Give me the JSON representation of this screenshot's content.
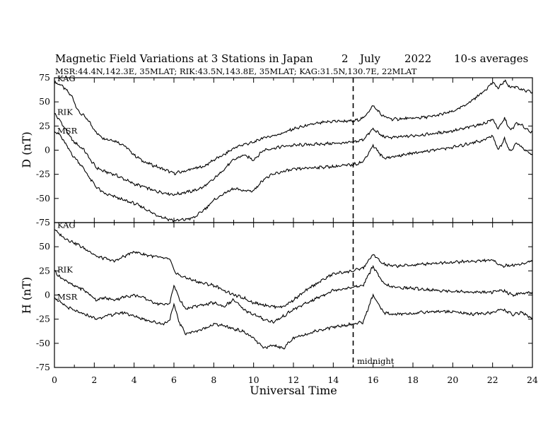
{
  "chart_data": {
    "type": "line",
    "title": "Magnetic Field Variations at 3 Stations in Japan",
    "date": {
      "day": "2",
      "month": "July",
      "year": "2022"
    },
    "averaging": "10-s averages",
    "subtitle": "MSR:44.4N,142.3E, 35MLAT;  RIK:43.5N,143.8E, 35MLAT;  KAG:31.5N,130.7E, 22MLAT",
    "xlabel": "Universal Time",
    "xlim": [
      0,
      24
    ],
    "xticks": [
      "0",
      "2",
      "4",
      "6",
      "8",
      "10",
      "12",
      "14",
      "16",
      "18",
      "20",
      "22",
      "24"
    ],
    "annotation": {
      "x": 15,
      "label": "midnight",
      "style": "dashed"
    },
    "panels": [
      {
        "ylabel": "D (nT)",
        "ylim": [
          -75,
          75
        ],
        "yticks": [
          "75",
          "50",
          "25",
          "0",
          "-25",
          "-50",
          "-75"
        ],
        "series": [
          {
            "name": "KAG",
            "x": [
              0,
              0.3,
              0.6,
              0.9,
              1.2,
              1.5,
              1.8,
              2.1,
              2.5,
              3,
              3.5,
              4,
              4.5,
              5,
              5.5,
              6,
              6.5,
              7,
              7.5,
              8,
              8.5,
              9,
              9.5,
              10,
              10.5,
              11,
              11.5,
              12,
              13,
              14,
              15,
              15.5,
              16,
              16.5,
              17,
              18,
              19,
              20,
              20.5,
              21,
              21.5,
              22,
              22.3,
              22.6,
              22.9,
              23.2,
              23.5,
              24
            ],
            "y": [
              70,
              68,
              62,
              55,
              40,
              35,
              28,
              18,
              12,
              10,
              5,
              -5,
              -12,
              -16,
              -20,
              -24,
              -22,
              -19,
              -17,
              -10,
              -5,
              2,
              6,
              8,
              13,
              15,
              18,
              22,
              27,
              30,
              30,
              33,
              46,
              35,
              32,
              33,
              35,
              40,
              45,
              52,
              60,
              70,
              64,
              72,
              65,
              66,
              62,
              60
            ]
          },
          {
            "name": "RIK",
            "x": [
              0,
              0.3,
              0.6,
              0.9,
              1.2,
              1.5,
              1.8,
              2.1,
              2.5,
              3,
              3.5,
              4,
              4.5,
              5,
              5.5,
              6,
              6.5,
              7,
              7.5,
              8,
              8.5,
              9,
              9.5,
              10,
              10.5,
              11,
              11.5,
              12,
              13,
              14,
              15,
              15.5,
              16,
              16.5,
              17,
              18,
              19,
              20,
              20.5,
              21,
              21.5,
              22,
              22.3,
              22.6,
              22.9,
              23.2,
              23.5,
              24
            ],
            "y": [
              38,
              30,
              20,
              10,
              5,
              0,
              -10,
              -18,
              -22,
              -25,
              -30,
              -35,
              -38,
              -42,
              -44,
              -46,
              -44,
              -42,
              -38,
              -30,
              -20,
              -10,
              -5,
              -10,
              0,
              2,
              4,
              5,
              6,
              7,
              8,
              11,
              22,
              14,
              13,
              15,
              17,
              20,
              22,
              25,
              27,
              32,
              22,
              33,
              20,
              28,
              25,
              18
            ]
          },
          {
            "name": "MSR",
            "x": [
              0,
              0.3,
              0.6,
              0.9,
              1.2,
              1.5,
              1.8,
              2.1,
              2.5,
              3,
              3.5,
              4,
              4.5,
              5,
              5.5,
              6,
              6.5,
              7,
              7.5,
              8,
              8.5,
              9,
              9.5,
              10,
              10.5,
              11,
              11.5,
              12,
              13,
              14,
              15,
              15.5,
              16,
              16.5,
              17,
              18,
              19,
              20,
              20.5,
              21,
              21.5,
              22,
              22.3,
              22.6,
              22.9,
              23.2,
              23.5,
              24
            ],
            "y": [
              20,
              15,
              5,
              -5,
              -12,
              -20,
              -30,
              -38,
              -45,
              -48,
              -52,
              -55,
              -60,
              -66,
              -70,
              -73,
              -72,
              -70,
              -62,
              -52,
              -45,
              -40,
              -42,
              -42,
              -30,
              -25,
              -22,
              -20,
              -18,
              -17,
              -15,
              -12,
              5,
              -8,
              -7,
              -3,
              0,
              3,
              5,
              8,
              10,
              15,
              0,
              12,
              -2,
              8,
              2,
              -5
            ]
          }
        ]
      },
      {
        "ylabel": "H (nT)",
        "ylim": [
          -75,
          75
        ],
        "yticks": [
          "75",
          "50",
          "25",
          "0",
          "-25",
          "-50",
          "-75"
        ],
        "series": [
          {
            "name": "KAG",
            "x": [
              0,
              0.3,
              0.6,
              0.9,
              1.2,
              1.5,
              1.8,
              2.1,
              2.5,
              3,
              3.5,
              4,
              4.5,
              5,
              5.5,
              5.8,
              6,
              6.3,
              6.6,
              7,
              7.5,
              8,
              8.5,
              9,
              9.5,
              10,
              10.5,
              11,
              11.5,
              12,
              13,
              14,
              15,
              15.5,
              16,
              16.5,
              17,
              18,
              19,
              20,
              21,
              22,
              22.5,
              23,
              23.5,
              24
            ],
            "y": [
              68,
              62,
              58,
              55,
              52,
              48,
              45,
              40,
              38,
              35,
              40,
              45,
              42,
              40,
              38,
              37,
              25,
              20,
              18,
              15,
              12,
              10,
              5,
              0,
              -3,
              -8,
              -10,
              -12,
              -12,
              -5,
              10,
              22,
              25,
              28,
              42,
              32,
              30,
              31,
              33,
              34,
              35,
              36,
              30,
              31,
              32,
              36
            ]
          },
          {
            "name": "RIK",
            "x": [
              0,
              0.3,
              0.6,
              0.9,
              1.2,
              1.5,
              1.8,
              2.1,
              2.5,
              3,
              3.5,
              4,
              4.5,
              5,
              5.5,
              5.8,
              6,
              6.3,
              6.6,
              7,
              7.5,
              8,
              8.5,
              9,
              9.5,
              10,
              10.5,
              11,
              11.5,
              12,
              13,
              14,
              15,
              15.5,
              16,
              16.5,
              17,
              18,
              19,
              20,
              21,
              22,
              22.5,
              23,
              23.5,
              24
            ],
            "y": [
              25,
              18,
              15,
              10,
              8,
              5,
              0,
              -5,
              -3,
              -5,
              -2,
              0,
              -3,
              -8,
              -10,
              -8,
              10,
              -5,
              -15,
              -12,
              -10,
              -8,
              -12,
              -5,
              -15,
              -20,
              -25,
              -28,
              -22,
              -15,
              -5,
              5,
              8,
              10,
              30,
              12,
              8,
              7,
              5,
              4,
              3,
              3,
              5,
              0,
              2,
              2
            ]
          },
          {
            "name": "MSR",
            "x": [
              0,
              0.3,
              0.6,
              0.9,
              1.2,
              1.5,
              1.8,
              2.1,
              2.5,
              3,
              3.5,
              4,
              4.5,
              5,
              5.5,
              5.8,
              6,
              6.3,
              6.6,
              7,
              7.5,
              8,
              8.5,
              9,
              9.5,
              10,
              10.5,
              11,
              11.5,
              12,
              13,
              14,
              15,
              15.5,
              16,
              16.5,
              17,
              18,
              19,
              20,
              21,
              22,
              22.5,
              23,
              23.5,
              24
            ],
            "y": [
              -2,
              -8,
              -12,
              -15,
              -18,
              -20,
              -22,
              -25,
              -22,
              -20,
              -18,
              -22,
              -25,
              -28,
              -30,
              -25,
              -10,
              -30,
              -40,
              -38,
              -35,
              -30,
              -32,
              -35,
              -38,
              -45,
              -55,
              -52,
              -55,
              -45,
              -38,
              -33,
              -30,
              -28,
              0,
              -18,
              -20,
              -19,
              -17,
              -17,
              -20,
              -18,
              -15,
              -20,
              -18,
              -25
            ]
          }
        ]
      }
    ]
  }
}
